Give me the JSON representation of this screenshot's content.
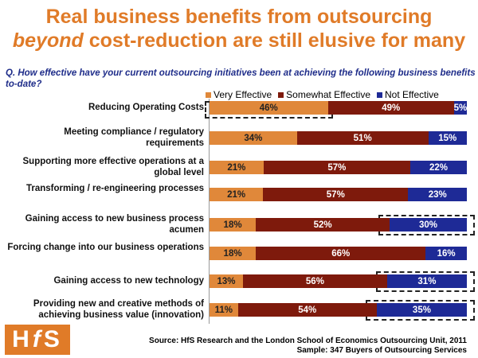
{
  "title_line1": "Real business benefits from outsourcing",
  "title_line2_em": "beyond",
  "title_line2_rest": " cost-reduction are still elusive for many",
  "question": "Q. How effective have your current outsourcing initiatives been at achieving the following business benefits to-date?",
  "logo_text": "HfS",
  "source": "Source:  HfS Research and the London School of Economics Outsourcing Unit, 2011",
  "sample": "Sample: 347 Buyers of Outsourcing Services",
  "chart_data": {
    "type": "bar",
    "stacked": true,
    "orientation": "horizontal",
    "legend_position": "top",
    "categories": [
      "Reducing Operating Costs",
      "Meeting compliance / regulatory requirements",
      "Supporting more effective operations at a global level",
      "Transforming / re-engineering processes",
      "Gaining access to new business process acumen",
      "Forcing change into our business operations",
      "Gaining access to new technology",
      "Providing new and creative methods of achieving business value (innovation)"
    ],
    "series": [
      {
        "name": "Very Effective",
        "color": "#e0883a",
        "text_color": "#222",
        "values": [
          46,
          34,
          21,
          21,
          18,
          18,
          13,
          11
        ]
      },
      {
        "name": "Somewhat Effective",
        "color": "#7e1a0c",
        "text_color": "#fff",
        "values": [
          49,
          51,
          57,
          57,
          52,
          66,
          56,
          54
        ]
      },
      {
        "name": "Not Effective",
        "color": "#1e2a96",
        "text_color": "#fff",
        "values": [
          5,
          15,
          22,
          23,
          30,
          16,
          31,
          35
        ]
      }
    ],
    "highlighted": [
      [
        0,
        0
      ],
      [
        4,
        2
      ],
      [
        6,
        2
      ],
      [
        7,
        2
      ]
    ],
    "unit": "%"
  }
}
